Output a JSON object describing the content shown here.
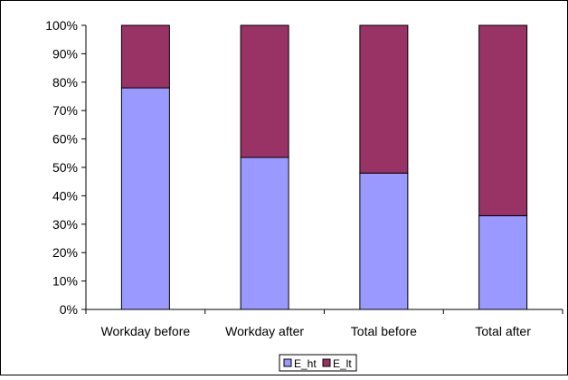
{
  "chart_data": {
    "type": "bar",
    "stacked": true,
    "stack_mode": "percent",
    "categories": [
      "Workday before",
      "Workday after",
      "Total before",
      "Total after"
    ],
    "series": [
      {
        "name": "E_ht",
        "values": [
          78,
          53.5,
          48,
          33
        ],
        "color": "#9999ff"
      },
      {
        "name": "E_lt",
        "values": [
          22,
          46.5,
          52,
          67
        ],
        "color": "#993366"
      }
    ],
    "y_ticks": [
      "0%",
      "10%",
      "20%",
      "30%",
      "40%",
      "50%",
      "60%",
      "70%",
      "80%",
      "90%",
      "100%"
    ],
    "ylim": [
      0,
      100
    ],
    "grid": false,
    "legend": "bottom-center",
    "title": "",
    "xlabel": "",
    "ylabel": ""
  }
}
